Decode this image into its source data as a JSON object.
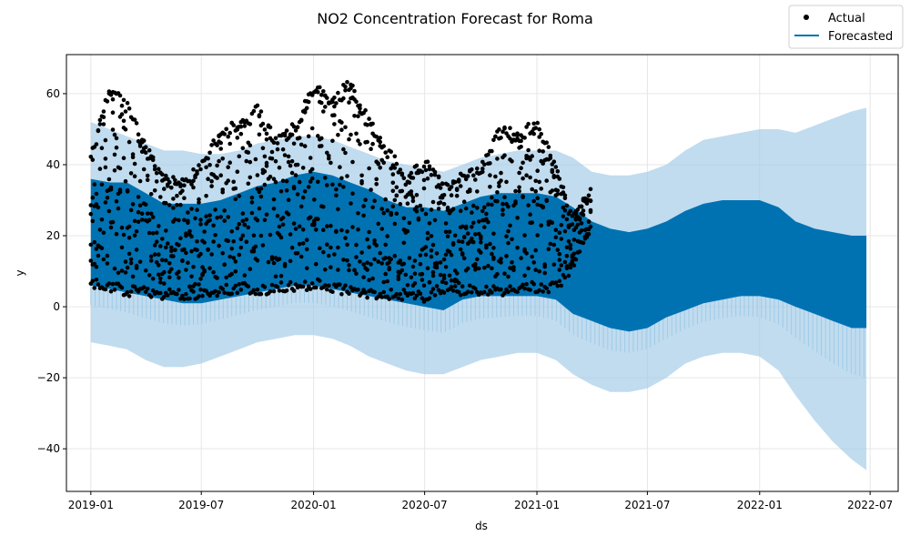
{
  "chart_data": {
    "type": "line",
    "title": "NO2 Concentration Forecast for Roma",
    "xlabel": "ds",
    "ylabel": "y",
    "xlim": [
      "2018-11-22",
      "2022-08-16"
    ],
    "ylim": [
      -52,
      71
    ],
    "x_ticks": [
      "2019-01",
      "2019-07",
      "2020-01",
      "2020-07",
      "2021-01",
      "2021-07",
      "2022-01",
      "2022-07"
    ],
    "y_ticks": [
      -40,
      -20,
      0,
      20,
      40,
      60
    ],
    "grid": true,
    "legend": {
      "position": "top-right",
      "entries": [
        "Actual",
        "Forecasted"
      ]
    },
    "colors": {
      "actual": "#000000",
      "forecast": "#0072B2",
      "interval": "#9fcae6",
      "grid": "#e6e6e6"
    },
    "series": [
      {
        "name": "Forecasted",
        "kind": "forecast-range",
        "x": [
          "2019-01-01",
          "2019-02-01",
          "2019-03-01",
          "2019-04-01",
          "2019-05-01",
          "2019-06-01",
          "2019-07-01",
          "2019-08-01",
          "2019-09-01",
          "2019-10-01",
          "2019-11-01",
          "2019-12-01",
          "2020-01-01",
          "2020-02-01",
          "2020-03-01",
          "2020-04-01",
          "2020-05-01",
          "2020-06-01",
          "2020-07-01",
          "2020-08-01",
          "2020-09-01",
          "2020-10-01",
          "2020-11-01",
          "2020-12-01",
          "2021-01-01",
          "2021-02-01",
          "2021-03-01",
          "2021-04-01",
          "2021-05-01",
          "2021-06-01",
          "2021-07-01",
          "2021-08-01",
          "2021-09-01",
          "2021-10-01",
          "2021-11-01",
          "2021-12-01",
          "2022-01-01",
          "2022-02-01",
          "2022-03-01",
          "2022-04-01",
          "2022-05-01",
          "2022-06-01",
          "2022-06-25"
        ],
        "y_upper": [
          36,
          35,
          35,
          32,
          29,
          29,
          29,
          30,
          32,
          34,
          35,
          37,
          38,
          37,
          35,
          33,
          30,
          28,
          28,
          27,
          29,
          31,
          32,
          32,
          32,
          31,
          28,
          24,
          22,
          21,
          22,
          24,
          27,
          29,
          30,
          30,
          30,
          28,
          24,
          22,
          21,
          20,
          20
        ],
        "y_lower": [
          6,
          5,
          4,
          3,
          2,
          1,
          1,
          2,
          3,
          4,
          5,
          6,
          6,
          5,
          4,
          3,
          2,
          1,
          0,
          -1,
          2,
          3,
          3,
          3,
          3,
          2,
          -2,
          -4,
          -6,
          -7,
          -6,
          -3,
          -1,
          1,
          2,
          3,
          3,
          2,
          0,
          -2,
          -4,
          -6,
          -6
        ],
        "interval_upper": [
          52,
          50,
          48,
          46,
          44,
          44,
          43,
          43,
          44,
          46,
          47,
          48,
          48,
          47,
          45,
          43,
          41,
          40,
          39,
          38,
          40,
          42,
          43,
          44,
          44,
          44,
          42,
          38,
          37,
          37,
          38,
          40,
          44,
          47,
          48,
          49,
          50,
          50,
          49,
          51,
          53,
          55,
          56
        ],
        "interval_lower": [
          -10,
          -11,
          -12,
          -15,
          -17,
          -17,
          -16,
          -14,
          -12,
          -10,
          -9,
          -8,
          -8,
          -9,
          -11,
          -14,
          -16,
          -18,
          -19,
          -19,
          -17,
          -15,
          -14,
          -13,
          -13,
          -15,
          -19,
          -22,
          -24,
          -24,
          -23,
          -20,
          -16,
          -14,
          -13,
          -13,
          -14,
          -18,
          -25,
          -32,
          -38,
          -43,
          -46
        ]
      },
      {
        "name": "Actual",
        "kind": "points",
        "x": [
          "2019-01-01",
          "2019-02-01",
          "2019-03-01",
          "2019-04-01",
          "2019-05-01",
          "2019-06-01",
          "2019-07-01",
          "2019-08-01",
          "2019-09-01",
          "2019-10-01",
          "2019-11-01",
          "2019-12-01",
          "2020-01-01",
          "2020-02-01",
          "2020-03-01",
          "2020-04-01",
          "2020-05-01",
          "2020-06-01",
          "2020-07-01",
          "2020-08-01",
          "2020-09-01",
          "2020-10-01",
          "2020-11-01",
          "2020-12-01",
          "2021-01-01",
          "2021-02-01",
          "2021-03-01",
          "2021-04-01"
        ],
        "y_high": [
          44,
          63,
          58,
          46,
          38,
          36,
          41,
          50,
          53,
          57,
          48,
          52,
          63,
          60,
          64,
          54,
          46,
          38,
          42,
          35,
          38,
          40,
          51,
          50,
          53,
          40,
          26,
          35
        ],
        "y_low": [
          5,
          4,
          3,
          3,
          2,
          2,
          2,
          3,
          4,
          3,
          4,
          4,
          5,
          4,
          3,
          2,
          2,
          2,
          1,
          4,
          3,
          3,
          3,
          4,
          4,
          4,
          10,
          22
        ]
      }
    ]
  }
}
